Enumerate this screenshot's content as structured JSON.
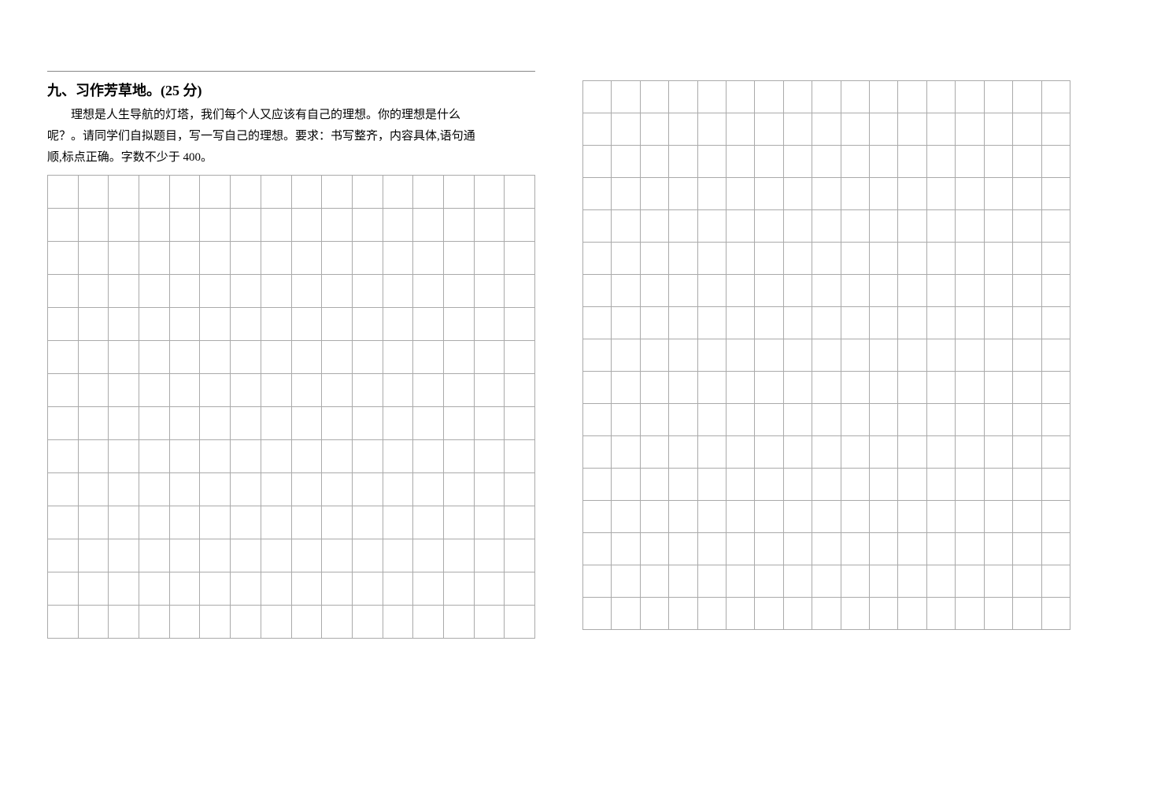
{
  "section": {
    "number": "九、",
    "title": "习作芳草地。",
    "points": "(25 分)"
  },
  "prompt": {
    "line1": "理想是人生导航的灯塔，我们每个人又应该有自己的理想。你的理想是什么",
    "line2": "呢？。请同学们自拟题目，写一写自己的理想。要求：书写整齐，内容具体,语句通",
    "line3": "顺,标点正确。字数不少于 400。"
  },
  "grid": {
    "left_columns": 16,
    "left_rows": 14,
    "right_columns": 17,
    "right_rows": 17,
    "border_color": "#aaa"
  }
}
